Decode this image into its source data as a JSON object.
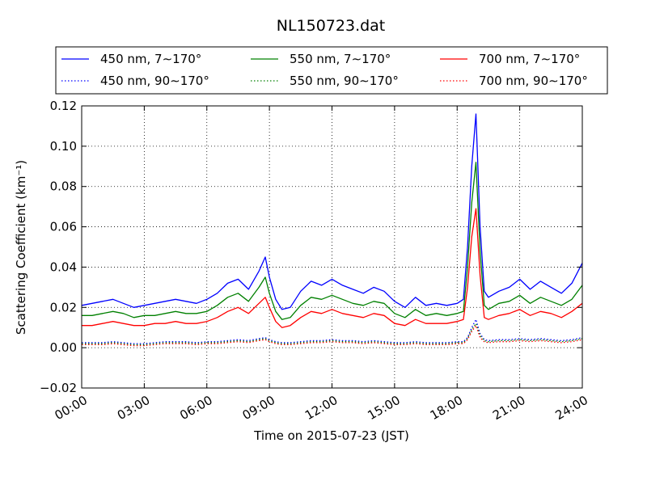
{
  "chart_data": {
    "type": "line",
    "title": "NL150723.dat",
    "xlabel": "Time on 2015-07-23 (JST)",
    "ylabel": "Scattering Coefficient (km⁻¹)",
    "x_unit": "hours",
    "xlim": [
      0,
      24
    ],
    "ylim": [
      -0.02,
      0.12
    ],
    "x_ticks": [
      0,
      3,
      6,
      9,
      12,
      15,
      18,
      21,
      24
    ],
    "x_tick_labels": [
      "00:00",
      "03:00",
      "06:00",
      "09:00",
      "12:00",
      "15:00",
      "18:00",
      "21:00",
      "24:00"
    ],
    "y_ticks": [
      -0.02,
      0.0,
      0.02,
      0.04,
      0.06,
      0.08,
      0.1,
      0.12
    ],
    "y_tick_labels": [
      "−0.02",
      "0.00",
      "0.02",
      "0.04",
      "0.06",
      "0.08",
      "0.10",
      "0.12"
    ],
    "grid": true,
    "legend_placement": "top, outside plot, 3 columns",
    "x": [
      0,
      0.5,
      1,
      1.5,
      2,
      2.5,
      3,
      3.5,
      4,
      4.5,
      5,
      5.5,
      6,
      6.5,
      7,
      7.5,
      8,
      8.5,
      8.8,
      9,
      9.3,
      9.6,
      10,
      10.5,
      11,
      11.5,
      12,
      12.5,
      13,
      13.5,
      14,
      14.5,
      15,
      15.5,
      16,
      16.5,
      17,
      17.5,
      18,
      18.3,
      18.5,
      18.7,
      18.9,
      19.1,
      19.3,
      19.5,
      20,
      20.5,
      21,
      21.5,
      22,
      22.5,
      23,
      23.5,
      24
    ],
    "series": [
      {
        "name": "450 nm, 7∼170°",
        "color": "#0000ff",
        "style": "solid",
        "values": [
          0.021,
          0.022,
          0.023,
          0.024,
          0.022,
          0.02,
          0.021,
          0.022,
          0.023,
          0.024,
          0.023,
          0.022,
          0.024,
          0.027,
          0.032,
          0.034,
          0.029,
          0.038,
          0.045,
          0.035,
          0.024,
          0.019,
          0.02,
          0.028,
          0.033,
          0.031,
          0.034,
          0.031,
          0.029,
          0.027,
          0.03,
          0.028,
          0.023,
          0.02,
          0.025,
          0.021,
          0.022,
          0.021,
          0.022,
          0.024,
          0.05,
          0.09,
          0.116,
          0.06,
          0.028,
          0.025,
          0.028,
          0.03,
          0.034,
          0.029,
          0.033,
          0.03,
          0.027,
          0.032,
          0.042
        ]
      },
      {
        "name": "550 nm, 7∼170°",
        "color": "#008000",
        "style": "solid",
        "values": [
          0.016,
          0.016,
          0.017,
          0.018,
          0.017,
          0.015,
          0.016,
          0.016,
          0.017,
          0.018,
          0.017,
          0.017,
          0.018,
          0.021,
          0.025,
          0.027,
          0.023,
          0.03,
          0.035,
          0.027,
          0.018,
          0.014,
          0.015,
          0.021,
          0.025,
          0.024,
          0.026,
          0.024,
          0.022,
          0.021,
          0.023,
          0.022,
          0.017,
          0.015,
          0.019,
          0.016,
          0.017,
          0.016,
          0.017,
          0.018,
          0.04,
          0.072,
          0.092,
          0.048,
          0.021,
          0.019,
          0.022,
          0.023,
          0.026,
          0.022,
          0.025,
          0.023,
          0.021,
          0.024,
          0.031
        ]
      },
      {
        "name": "700 nm, 7∼170°",
        "color": "#ff0000",
        "style": "solid",
        "values": [
          0.011,
          0.011,
          0.012,
          0.013,
          0.012,
          0.011,
          0.011,
          0.012,
          0.012,
          0.013,
          0.012,
          0.012,
          0.013,
          0.015,
          0.018,
          0.02,
          0.017,
          0.022,
          0.025,
          0.02,
          0.013,
          0.01,
          0.011,
          0.015,
          0.018,
          0.017,
          0.019,
          0.017,
          0.016,
          0.015,
          0.017,
          0.016,
          0.012,
          0.011,
          0.014,
          0.012,
          0.012,
          0.012,
          0.013,
          0.014,
          0.03,
          0.055,
          0.069,
          0.036,
          0.015,
          0.014,
          0.016,
          0.017,
          0.019,
          0.016,
          0.018,
          0.017,
          0.015,
          0.018,
          0.022
        ]
      },
      {
        "name": "450 nm, 90∼170°",
        "color": "#0000ff",
        "style": "dotted",
        "values": [
          0.0025,
          0.0025,
          0.0025,
          0.003,
          0.0025,
          0.002,
          0.002,
          0.0025,
          0.003,
          0.003,
          0.003,
          0.0025,
          0.003,
          0.003,
          0.0035,
          0.004,
          0.0035,
          0.0045,
          0.005,
          0.004,
          0.003,
          0.0025,
          0.0025,
          0.003,
          0.0035,
          0.0035,
          0.004,
          0.0035,
          0.0035,
          0.003,
          0.0035,
          0.003,
          0.0025,
          0.0025,
          0.003,
          0.0025,
          0.0025,
          0.0025,
          0.003,
          0.003,
          0.005,
          0.01,
          0.014,
          0.007,
          0.004,
          0.0035,
          0.004,
          0.004,
          0.0045,
          0.004,
          0.0045,
          0.004,
          0.0035,
          0.004,
          0.005
        ]
      },
      {
        "name": "550 nm, 90∼170°",
        "color": "#008000",
        "style": "dotted",
        "values": [
          0.002,
          0.002,
          0.002,
          0.0025,
          0.002,
          0.0015,
          0.0015,
          0.002,
          0.0025,
          0.0025,
          0.0025,
          0.002,
          0.0025,
          0.0025,
          0.003,
          0.0035,
          0.003,
          0.004,
          0.0045,
          0.0035,
          0.0025,
          0.002,
          0.002,
          0.0025,
          0.003,
          0.003,
          0.0035,
          0.003,
          0.003,
          0.0025,
          0.003,
          0.0025,
          0.002,
          0.002,
          0.0025,
          0.002,
          0.002,
          0.002,
          0.0025,
          0.0025,
          0.0045,
          0.009,
          0.012,
          0.006,
          0.0035,
          0.003,
          0.0035,
          0.0035,
          0.004,
          0.0035,
          0.004,
          0.0035,
          0.003,
          0.0035,
          0.0045
        ]
      },
      {
        "name": "700 nm, 90∼170°",
        "color": "#ff0000",
        "style": "dotted",
        "values": [
          0.0015,
          0.0015,
          0.0015,
          0.002,
          0.0015,
          0.001,
          0.001,
          0.0015,
          0.002,
          0.002,
          0.002,
          0.0015,
          0.002,
          0.002,
          0.0025,
          0.003,
          0.0025,
          0.0035,
          0.004,
          0.003,
          0.002,
          0.0015,
          0.0015,
          0.002,
          0.0025,
          0.0025,
          0.003,
          0.0025,
          0.0025,
          0.002,
          0.0025,
          0.002,
          0.0015,
          0.0015,
          0.002,
          0.0015,
          0.0015,
          0.0015,
          0.002,
          0.002,
          0.004,
          0.008,
          0.011,
          0.005,
          0.003,
          0.0025,
          0.003,
          0.003,
          0.0035,
          0.003,
          0.0035,
          0.003,
          0.0025,
          0.003,
          0.004
        ]
      }
    ],
    "legend_order": [
      0,
      1,
      2,
      3,
      4,
      5
    ]
  }
}
